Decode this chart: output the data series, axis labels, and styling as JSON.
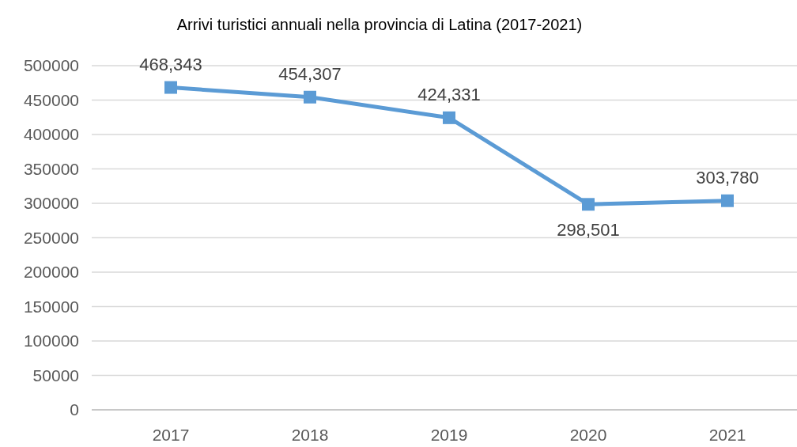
{
  "chart_data": {
    "type": "line",
    "title": "Arrivi turistici annuali nella provincia di Latina (2017-2021)",
    "categories": [
      "2017",
      "2018",
      "2019",
      "2020",
      "2021"
    ],
    "series": [
      {
        "color": "#5b9bd5",
        "values": [
          468343,
          454307,
          424331,
          298501,
          303780
        ]
      }
    ],
    "value_labels": [
      "468,343",
      "454,307",
      "424,331",
      "298,501",
      "303,780"
    ],
    "ylim": [
      0,
      500000
    ],
    "yticks": [
      0,
      50000,
      100000,
      150000,
      200000,
      250000,
      300000,
      350000,
      400000,
      450000,
      500000
    ],
    "grid": "y",
    "marker": "square",
    "line_style": "solid"
  }
}
